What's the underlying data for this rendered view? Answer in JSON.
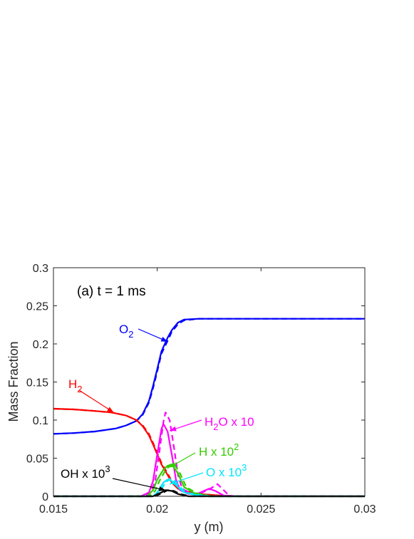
{
  "chart_data": {
    "type": "line",
    "title": "",
    "panel_label": "(a) t = 1 ms",
    "xlabel": "y (m)",
    "ylabel": "Mass Fraction",
    "xlim": [
      0.015,
      0.03
    ],
    "ylim": [
      0,
      0.3
    ],
    "xticks": [
      0.015,
      0.02,
      0.025,
      0.03
    ],
    "xtick_labels": [
      "0.015",
      "0.02",
      "0.025",
      "0.03"
    ],
    "yticks": [
      0,
      0.05,
      0.1,
      0.15,
      0.2,
      0.25,
      0.3
    ],
    "ytick_labels": [
      "0",
      "0.05",
      "0.1",
      "0.15",
      "0.2",
      "0.25",
      "0.3"
    ],
    "grid": false,
    "line_styles": [
      "solid",
      "dashed"
    ],
    "series": [
      {
        "id": "o2",
        "color": "#0000ff",
        "solid": [
          [
            0.015,
            0.082
          ],
          [
            0.016,
            0.083
          ],
          [
            0.017,
            0.085
          ],
          [
            0.018,
            0.089
          ],
          [
            0.0185,
            0.093
          ],
          [
            0.019,
            0.099
          ],
          [
            0.0193,
            0.108
          ],
          [
            0.0196,
            0.125
          ],
          [
            0.0198,
            0.145
          ],
          [
            0.02,
            0.167
          ],
          [
            0.0202,
            0.19
          ],
          [
            0.0205,
            0.208
          ],
          [
            0.0207,
            0.218
          ],
          [
            0.021,
            0.228
          ],
          [
            0.0213,
            0.232
          ],
          [
            0.022,
            0.233
          ],
          [
            0.025,
            0.233
          ],
          [
            0.03,
            0.233
          ]
        ],
        "dashed": [
          [
            0.015,
            0.082
          ],
          [
            0.016,
            0.083
          ],
          [
            0.017,
            0.085
          ],
          [
            0.018,
            0.089
          ],
          [
            0.0185,
            0.093
          ],
          [
            0.019,
            0.099
          ],
          [
            0.0193,
            0.107
          ],
          [
            0.0196,
            0.123
          ],
          [
            0.0198,
            0.142
          ],
          [
            0.02,
            0.164
          ],
          [
            0.0202,
            0.187
          ],
          [
            0.0205,
            0.204
          ],
          [
            0.0207,
            0.216
          ],
          [
            0.021,
            0.226
          ],
          [
            0.0213,
            0.231
          ],
          [
            0.022,
            0.233
          ],
          [
            0.025,
            0.233
          ],
          [
            0.03,
            0.233
          ]
        ]
      },
      {
        "id": "h2",
        "color": "#ff0000",
        "solid": [
          [
            0.015,
            0.115
          ],
          [
            0.016,
            0.114
          ],
          [
            0.017,
            0.112
          ],
          [
            0.0178,
            0.11
          ],
          [
            0.0185,
            0.106
          ],
          [
            0.019,
            0.1
          ],
          [
            0.0193,
            0.092
          ],
          [
            0.0196,
            0.08
          ],
          [
            0.0198,
            0.068
          ],
          [
            0.02,
            0.055
          ],
          [
            0.0202,
            0.042
          ],
          [
            0.0205,
            0.028
          ],
          [
            0.0207,
            0.018
          ],
          [
            0.021,
            0.01
          ],
          [
            0.0213,
            0.006
          ],
          [
            0.022,
            0.003
          ],
          [
            0.023,
            0.001
          ],
          [
            0.024,
            0
          ],
          [
            0.03,
            0
          ]
        ],
        "dashed": [
          [
            0.015,
            0.115
          ],
          [
            0.016,
            0.114
          ],
          [
            0.017,
            0.112
          ],
          [
            0.0178,
            0.11
          ],
          [
            0.0185,
            0.106
          ],
          [
            0.019,
            0.1
          ],
          [
            0.0193,
            0.093
          ],
          [
            0.0196,
            0.082
          ],
          [
            0.0198,
            0.07
          ],
          [
            0.02,
            0.057
          ],
          [
            0.0202,
            0.044
          ],
          [
            0.0205,
            0.03
          ],
          [
            0.0207,
            0.02
          ],
          [
            0.021,
            0.011
          ],
          [
            0.0213,
            0.007
          ],
          [
            0.022,
            0.003
          ],
          [
            0.023,
            0.001
          ],
          [
            0.024,
            0
          ],
          [
            0.03,
            0
          ]
        ]
      },
      {
        "id": "h2o",
        "color": "#ff00ff",
        "solid": [
          [
            0.015,
            0
          ],
          [
            0.0192,
            0
          ],
          [
            0.0196,
            0.005
          ],
          [
            0.0198,
            0.02
          ],
          [
            0.02,
            0.055
          ],
          [
            0.0202,
            0.088
          ],
          [
            0.0203,
            0.095
          ],
          [
            0.0205,
            0.085
          ],
          [
            0.0207,
            0.055
          ],
          [
            0.0209,
            0.022
          ],
          [
            0.0211,
            0.008
          ],
          [
            0.0215,
            0.003
          ],
          [
            0.022,
            0.004
          ],
          [
            0.0225,
            0.01
          ],
          [
            0.0228,
            0.007
          ],
          [
            0.0232,
            0.001
          ],
          [
            0.024,
            0
          ],
          [
            0.03,
            0
          ]
        ],
        "dashed": [
          [
            0.015,
            0
          ],
          [
            0.0193,
            0
          ],
          [
            0.0197,
            0.005
          ],
          [
            0.0199,
            0.02
          ],
          [
            0.0201,
            0.058
          ],
          [
            0.0203,
            0.098
          ],
          [
            0.0204,
            0.11
          ],
          [
            0.0206,
            0.1
          ],
          [
            0.0208,
            0.065
          ],
          [
            0.021,
            0.028
          ],
          [
            0.0212,
            0.01
          ],
          [
            0.0216,
            0.004
          ],
          [
            0.022,
            0.003
          ],
          [
            0.0225,
            0.009
          ],
          [
            0.0229,
            0.016
          ],
          [
            0.0232,
            0.008
          ],
          [
            0.0235,
            0
          ],
          [
            0.03,
            0
          ]
        ]
      },
      {
        "id": "h",
        "color": "#33cc00",
        "solid": [
          [
            0.015,
            0
          ],
          [
            0.0195,
            0
          ],
          [
            0.0198,
            0.008
          ],
          [
            0.02,
            0.022
          ],
          [
            0.0203,
            0.035
          ],
          [
            0.0205,
            0.04
          ],
          [
            0.0207,
            0.042
          ],
          [
            0.021,
            0.03
          ],
          [
            0.0213,
            0.012
          ],
          [
            0.0218,
            0.004
          ],
          [
            0.0225,
            0
          ],
          [
            0.03,
            0
          ]
        ],
        "dashed": [
          [
            0.015,
            0
          ],
          [
            0.0196,
            0
          ],
          [
            0.0199,
            0.007
          ],
          [
            0.0201,
            0.02
          ],
          [
            0.0204,
            0.034
          ],
          [
            0.0206,
            0.04
          ],
          [
            0.0208,
            0.043
          ],
          [
            0.0211,
            0.03
          ],
          [
            0.0214,
            0.012
          ],
          [
            0.0219,
            0.004
          ],
          [
            0.0226,
            0
          ],
          [
            0.03,
            0
          ]
        ]
      },
      {
        "id": "o",
        "color": "#00e5ff",
        "solid": [
          [
            0.015,
            0
          ],
          [
            0.0198,
            0
          ],
          [
            0.02,
            0.005
          ],
          [
            0.0203,
            0.018
          ],
          [
            0.0205,
            0.022
          ],
          [
            0.0207,
            0.02
          ],
          [
            0.021,
            0.012
          ],
          [
            0.0213,
            0.005
          ],
          [
            0.0218,
            0.002
          ],
          [
            0.0225,
            0
          ],
          [
            0.03,
            0
          ]
        ],
        "dashed": [
          [
            0.015,
            0
          ],
          [
            0.0199,
            0
          ],
          [
            0.0201,
            0.005
          ],
          [
            0.0204,
            0.018
          ],
          [
            0.0206,
            0.023
          ],
          [
            0.0208,
            0.021
          ],
          [
            0.0211,
            0.012
          ],
          [
            0.0214,
            0.005
          ],
          [
            0.0219,
            0.002
          ],
          [
            0.0226,
            0
          ],
          [
            0.03,
            0
          ]
        ]
      },
      {
        "id": "oh",
        "color": "#000000",
        "solid": [
          [
            0.015,
            0
          ],
          [
            0.0198,
            0
          ],
          [
            0.0202,
            0.005
          ],
          [
            0.0204,
            0.008
          ],
          [
            0.0207,
            0.007
          ],
          [
            0.021,
            0.003
          ],
          [
            0.0215,
            0
          ],
          [
            0.03,
            0
          ]
        ],
        "dashed": [
          [
            0.015,
            0
          ],
          [
            0.0199,
            0
          ],
          [
            0.0203,
            0.005
          ],
          [
            0.0205,
            0.008
          ],
          [
            0.0208,
            0.007
          ],
          [
            0.0211,
            0.003
          ],
          [
            0.0216,
            0
          ],
          [
            0.03,
            0
          ]
        ]
      }
    ],
    "annotations": [
      {
        "id": "o2",
        "text": "O",
        "sub": "2",
        "sup": "",
        "suffix": "",
        "color": "#0000ff",
        "arrow_to": [
          0.0205,
          0.203
        ]
      },
      {
        "id": "h2",
        "text": "H",
        "sub": "2",
        "sup": "",
        "suffix": "",
        "color": "#ff0000",
        "arrow_to": [
          0.0179,
          0.11
        ]
      },
      {
        "id": "h2o",
        "text": "H",
        "sub": "2",
        "sup": "",
        "suffix": "O x 10",
        "color": "#ff00ff",
        "arrow_to": [
          0.0206,
          0.086
        ]
      },
      {
        "id": "h",
        "text": "H x 10",
        "sub": "",
        "sup": "2",
        "suffix": "",
        "color": "#33cc00",
        "arrow_to": [
          0.0206,
          0.038
        ]
      },
      {
        "id": "o",
        "text": "O x 10",
        "sub": "",
        "sup": "3",
        "suffix": "",
        "color": "#00e5ff",
        "arrow_to": [
          0.0206,
          0.016
        ]
      },
      {
        "id": "oh",
        "text": "OH x 10",
        "sub": "",
        "sup": "3",
        "suffix": "",
        "color": "#000000",
        "arrow_to": [
          0.0204,
          0.008
        ]
      }
    ]
  }
}
